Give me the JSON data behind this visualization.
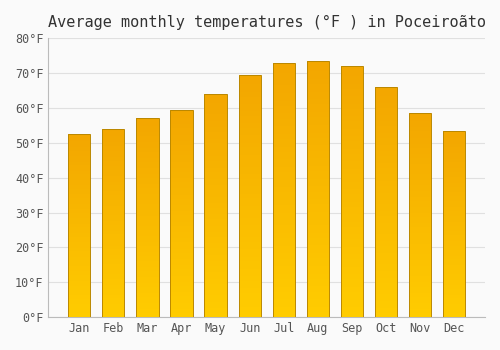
{
  "title": "Average monthly temperatures (°F ) in Poceiroãto",
  "months": [
    "Jan",
    "Feb",
    "Mar",
    "Apr",
    "May",
    "Jun",
    "Jul",
    "Aug",
    "Sep",
    "Oct",
    "Nov",
    "Dec"
  ],
  "values": [
    52.5,
    54.0,
    57.0,
    59.5,
    64.0,
    69.5,
    73.0,
    73.5,
    72.0,
    66.0,
    58.5,
    53.5
  ],
  "ylim": [
    0,
    80
  ],
  "yticks": [
    0,
    10,
    20,
    30,
    40,
    50,
    60,
    70,
    80
  ],
  "bar_color_top": "#FFC107",
  "bar_color_bottom": "#FFB300",
  "bar_edge_color": "#E6A000",
  "background_color": "#FAFAFA",
  "grid_color": "#E0E0E0",
  "title_fontsize": 11,
  "tick_fontsize": 8.5,
  "ylabel_format": "{0}°F"
}
